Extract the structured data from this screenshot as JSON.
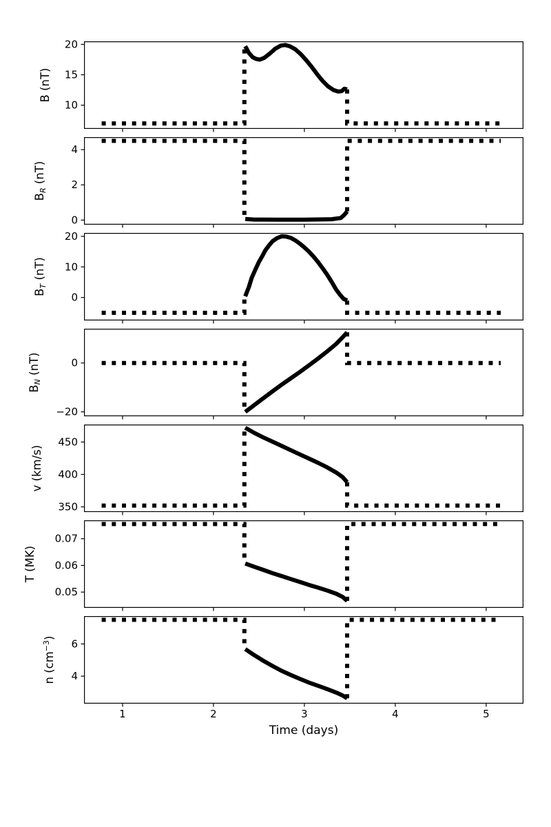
{
  "chart_data": {
    "type": "line",
    "title": "",
    "xlabel": "Time (days)",
    "x_ticks": [
      1,
      2,
      3,
      4,
      5
    ],
    "x_tick_labels": [
      "1",
      "2",
      "3",
      "4",
      "5"
    ],
    "xlim": [
      0.576,
      5.41
    ],
    "grid": false,
    "legend": "none",
    "colors": {
      "line": "#000000",
      "background": "#ffffff"
    },
    "line_styles": {
      "ambient": "dotted-square",
      "event": "solid-thick"
    },
    "event_start": 2.34,
    "event_end": 3.47,
    "ambient_segments": {
      "pre": [
        0.77,
        2.34
      ],
      "post": [
        3.47,
        5.16
      ]
    },
    "panels": [
      {
        "id": "B",
        "ylabel_plain": "B (nT)",
        "ylabel_parts": [
          {
            "t": "B"
          },
          {
            "t": " (nT)"
          }
        ],
        "ytick_values": [
          10,
          15,
          20
        ],
        "ytick_labels": [
          "10",
          "15",
          "20"
        ],
        "ylim": [
          6.1,
          20.5
        ],
        "ambient": 7.0,
        "solid": {
          "x": [
            2.35,
            2.39,
            2.43,
            2.47,
            2.51,
            2.56,
            2.62,
            2.68,
            2.74,
            2.79,
            2.84,
            2.9,
            2.96,
            3.02,
            3.08,
            3.14,
            3.2,
            3.26,
            3.32,
            3.37,
            3.41,
            3.44,
            3.47
          ],
          "y": [
            19.7,
            18.6,
            17.9,
            17.6,
            17.5,
            17.8,
            18.5,
            19.3,
            19.8,
            19.9,
            19.7,
            19.2,
            18.4,
            17.4,
            16.3,
            15.1,
            14.0,
            13.1,
            12.5,
            12.25,
            12.3,
            12.7,
            12.6
          ]
        }
      },
      {
        "id": "B_R",
        "ylabel_plain": "B_R (nT)",
        "ylabel_parts": [
          {
            "t": "B"
          },
          {
            "t": "R",
            "s": "sub"
          },
          {
            "t": " (nT)"
          }
        ],
        "ytick_values": [
          0,
          2,
          4
        ],
        "ytick_labels": [
          "0",
          "2",
          "4"
        ],
        "ylim": [
          -0.26,
          4.71
        ],
        "ambient": 4.5,
        "solid": {
          "x": [
            2.35,
            2.45,
            2.7,
            3.0,
            3.3,
            3.4,
            3.44,
            3.47
          ],
          "y": [
            0.06,
            0.03,
            0.02,
            0.02,
            0.05,
            0.12,
            0.3,
            0.5
          ]
        }
      },
      {
        "id": "B_T",
        "ylabel_plain": "B_T (nT)",
        "ylabel_parts": [
          {
            "t": "B"
          },
          {
            "t": "T",
            "s": "sub"
          },
          {
            "t": " (nT)"
          }
        ],
        "ytick_values": [
          0,
          10,
          20
        ],
        "ytick_labels": [
          "0",
          "10",
          "20"
        ],
        "ylim": [
          -7.5,
          21.1
        ],
        "ambient": -5.0,
        "solid": {
          "x": [
            2.35,
            2.39,
            2.42,
            2.46,
            2.5,
            2.54,
            2.57,
            2.61,
            2.65,
            2.7,
            2.75,
            2.8,
            2.85,
            2.9,
            2.95,
            3.0,
            3.05,
            3.1,
            3.15,
            3.2,
            3.25,
            3.3,
            3.35,
            3.39,
            3.43,
            3.47
          ],
          "y": [
            0.4,
            3.5,
            6.4,
            9.1,
            11.6,
            13.7,
            15.4,
            17.0,
            18.4,
            19.4,
            20.0,
            19.9,
            19.5,
            18.7,
            17.6,
            16.4,
            15.0,
            13.4,
            11.6,
            9.6,
            7.5,
            5.1,
            2.6,
            1.0,
            -0.4,
            -1.0
          ]
        }
      },
      {
        "id": "B_N",
        "ylabel_plain": "B_N (nT)",
        "ylabel_parts": [
          {
            "t": "B"
          },
          {
            "t": "N",
            "s": "sub"
          },
          {
            "t": " (nT)"
          }
        ],
        "ytick_values": [
          -20,
          0
        ],
        "ytick_labels": [
          "−20",
          "0"
        ],
        "ylim": [
          -21.8,
          14.0
        ],
        "ambient": 0.0,
        "solid": {
          "x": [
            2.35,
            2.45,
            2.55,
            2.65,
            2.75,
            2.85,
            2.95,
            3.05,
            3.15,
            3.25,
            3.35,
            3.42,
            3.47
          ],
          "y": [
            -20.0,
            -17.2,
            -14.4,
            -11.6,
            -8.9,
            -6.3,
            -3.7,
            -1.0,
            1.8,
            4.7,
            7.8,
            10.5,
            12.5
          ]
        }
      },
      {
        "id": "v",
        "ylabel_plain": "v (km/s)",
        "ylabel_parts": [
          {
            "t": "v (km/s)"
          }
        ],
        "ytick_values": [
          350,
          400,
          450
        ],
        "ytick_labels": [
          "350",
          "400",
          "450"
        ],
        "ylim": [
          342,
          477
        ],
        "ambient": 352,
        "solid": {
          "x": [
            2.35,
            2.45,
            2.55,
            2.65,
            2.75,
            2.85,
            2.95,
            3.05,
            3.15,
            3.25,
            3.35,
            3.42,
            3.47
          ],
          "y": [
            472,
            464,
            457,
            450.5,
            444,
            437.5,
            431,
            424.5,
            418,
            411,
            403,
            396,
            388
          ]
        }
      },
      {
        "id": "T",
        "ylabel_plain": "T (MK)",
        "ylabel_parts": [
          {
            "t": "T (MK)"
          }
        ],
        "ytick_values": [
          0.05,
          0.06,
          0.07
        ],
        "ytick_labels": [
          "0.05",
          "0.06",
          "0.07"
        ],
        "ylim": [
          0.0441,
          0.0769
        ],
        "ambient": 0.0755,
        "solid": {
          "x": [
            2.35,
            2.45,
            2.55,
            2.65,
            2.75,
            2.85,
            2.95,
            3.05,
            3.15,
            3.25,
            3.35,
            3.42,
            3.47
          ],
          "y": [
            0.0607,
            0.0595,
            0.0583,
            0.0571,
            0.056,
            0.0549,
            0.0538,
            0.0527,
            0.0517,
            0.0506,
            0.0494,
            0.0482,
            0.0467
          ]
        }
      },
      {
        "id": "n",
        "ylabel_plain": "n (cm^-3)",
        "ylabel_parts": [
          {
            "t": "n (cm"
          },
          {
            "t": "−3",
            "s": "sup"
          },
          {
            "t": ")"
          }
        ],
        "ytick_values": [
          4,
          6
        ],
        "ytick_labels": [
          "4",
          "6"
        ],
        "ylim": [
          2.29,
          7.73
        ],
        "ambient": 7.5,
        "solid": {
          "x": [
            2.35,
            2.45,
            2.55,
            2.65,
            2.75,
            2.85,
            2.95,
            3.05,
            3.15,
            3.25,
            3.35,
            3.42,
            3.47
          ],
          "y": [
            5.68,
            5.3,
            4.95,
            4.63,
            4.33,
            4.07,
            3.83,
            3.6,
            3.4,
            3.2,
            2.98,
            2.8,
            2.62
          ]
        }
      }
    ]
  }
}
